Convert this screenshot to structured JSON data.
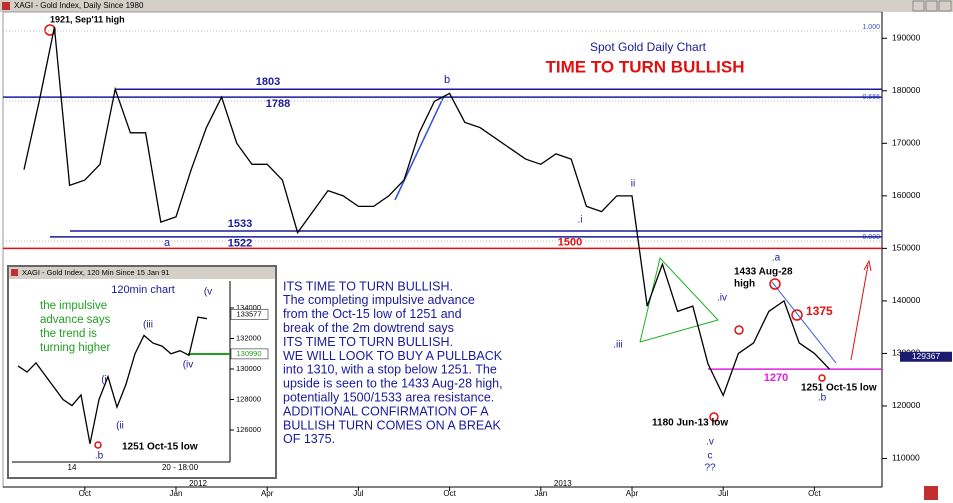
{
  "chart_data": [
    {
      "type": "line",
      "window_title": "XAGI - Gold Index, Daily  Since 1980",
      "title": "Spot Gold Daily Chart",
      "subtitle": "TIME TO TURN BULLISH",
      "color": "#000000",
      "categories": [
        null,
        null,
        null,
        null,
        "Oct",
        null,
        null,
        null,
        null,
        null,
        "Jan",
        null,
        null,
        null,
        null,
        null,
        "Apr",
        null,
        null,
        null,
        null,
        null,
        "Jul",
        null,
        null,
        null,
        null,
        null,
        "Oct",
        null,
        null,
        null,
        null,
        null,
        "Jan",
        null,
        null,
        null,
        null,
        null,
        "Apr",
        null,
        null,
        null,
        null,
        null,
        "Jul",
        null,
        null,
        null,
        null,
        null,
        "Oct",
        null
      ],
      "year_labels": [
        "2012",
        "2013"
      ],
      "values": [
        165000,
        178000,
        192100,
        162000,
        163000,
        166000,
        180300,
        172000,
        172000,
        155000,
        156000,
        165000,
        173000,
        178800,
        170000,
        166000,
        166000,
        163000,
        153000,
        157000,
        161000,
        160000,
        158000,
        158000,
        160000,
        163000,
        172000,
        178000,
        179500,
        174000,
        173000,
        171000,
        169000,
        167000,
        166000,
        168000,
        167000,
        158000,
        157000,
        160000,
        160000,
        139000,
        147000,
        138000,
        139000,
        128000,
        122000,
        130000,
        132000,
        138000,
        140000,
        132000,
        130000,
        127000
      ],
      "ylim": [
        104000,
        195000
      ],
      "yticks": [
        110000,
        120000,
        130000,
        140000,
        150000,
        160000,
        170000,
        180000,
        190000
      ],
      "last_price": 129367,
      "levels": [
        {
          "label": "1803",
          "value": 180300,
          "color": "#1a1aa0"
        },
        {
          "label": "1788",
          "value": 178800,
          "color": "#1a1aa0"
        },
        {
          "label": "1533",
          "value": 153300,
          "color": "#1a1aa0"
        },
        {
          "label": "1522",
          "value": 152200,
          "color": "#1a1aa0"
        },
        {
          "label": "1500",
          "value": 150000,
          "color": "#e01010"
        },
        {
          "label": "1270",
          "value": 127000,
          "color": "#e020e0"
        }
      ],
      "fib_labels": [
        "1.000",
        "0.666",
        "0.000"
      ],
      "annotations": [
        {
          "text": "1921, Sep'11 high",
          "color": "#000000"
        },
        {
          "text": "b",
          "color": "#1a1aa0"
        },
        {
          "text": "a",
          "color": "#1a1aa0"
        },
        {
          "text": ".i",
          "color": "#1a1aa0"
        },
        {
          "text": "ii",
          "color": "#1a1aa0"
        },
        {
          "text": ".iii",
          "color": "#1a1aa0"
        },
        {
          "text": ".iv",
          "color": "#1a1aa0"
        },
        {
          "text": "1433 Aug-28",
          "color": "#000000"
        },
        {
          "text": "high",
          "color": "#000000"
        },
        {
          "text": ".a",
          "color": "#1a1aa0"
        },
        {
          "text": "1375",
          "color": "#e01010"
        },
        {
          "text": "1251 Oct-15 low",
          "color": "#000000"
        },
        {
          "text": ".b",
          "color": "#1a1aa0"
        },
        {
          "text": "1180 Jun-13 low",
          "color": "#000000"
        },
        {
          "text": ".v",
          "color": "#1a1aa0"
        },
        {
          "text": "c",
          "color": "#1a1aa0"
        },
        {
          "text": "??",
          "color": "#1a1aa0"
        }
      ],
      "commentary": [
        "ITS TIME TO TURN BULLISH.",
        "The completing impulsive advance",
        "from the Oct-15 low of 1251 and",
        "break of the 2m dowtrend says",
        "ITS TIME TO TURN BULLISH.",
        "WE WILL LOOK TO BUY A PULLBACK",
        "into 1310, with a stop below 1251. The",
        "upside is seen to the 1433 Aug-28 high,",
        "potentially 1500/1533 area resistance.",
        "ADDITIONAL CONFIRMATION OF A",
        "BULLISH TURN COMES ON A BREAK",
        "OF 1375."
      ]
    },
    {
      "type": "line",
      "window_title": "XAGI - Gold Index, 120 Min  Since 15 Jan 91",
      "title": "120min chart",
      "color": "#000000",
      "categories": [
        null,
        null,
        null,
        null,
        null,
        null,
        "14",
        null,
        null,
        null,
        null,
        null,
        null,
        null,
        null,
        null,
        null,
        null,
        "20 - 18:00",
        null,
        null,
        null
      ],
      "values": [
        130200,
        129800,
        130400,
        129600,
        128800,
        128000,
        127600,
        128300,
        125100,
        128000,
        129500,
        127500,
        129000,
        131000,
        132200,
        131700,
        131500,
        131000,
        131200,
        130900,
        133400,
        133300
      ],
      "ylim": [
        124000,
        136000
      ],
      "yticks": [
        126000,
        128000,
        130000,
        132000,
        134000
      ],
      "price_labels": [
        {
          "value": 133577,
          "color": "#ffffff"
        },
        {
          "value": 130990,
          "color": "#22a022"
        }
      ],
      "note": [
        "the impulsive",
        "advance says",
        "the trend is",
        "turning higher"
      ],
      "note_color": "#22a022",
      "annotations": [
        {
          "text": "(v",
          "color": "#1a1aa0"
        },
        {
          "text": "(iii",
          "color": "#1a1aa0"
        },
        {
          "text": "(iv",
          "color": "#1a1aa0"
        },
        {
          "text": "(i",
          "color": "#1a1aa0"
        },
        {
          "text": "(ii",
          "color": "#1a1aa0"
        },
        {
          "text": "1251 Oct-15 low",
          "color": "#000000"
        },
        {
          "text": ".b",
          "color": "#1a1aa0"
        }
      ]
    }
  ]
}
